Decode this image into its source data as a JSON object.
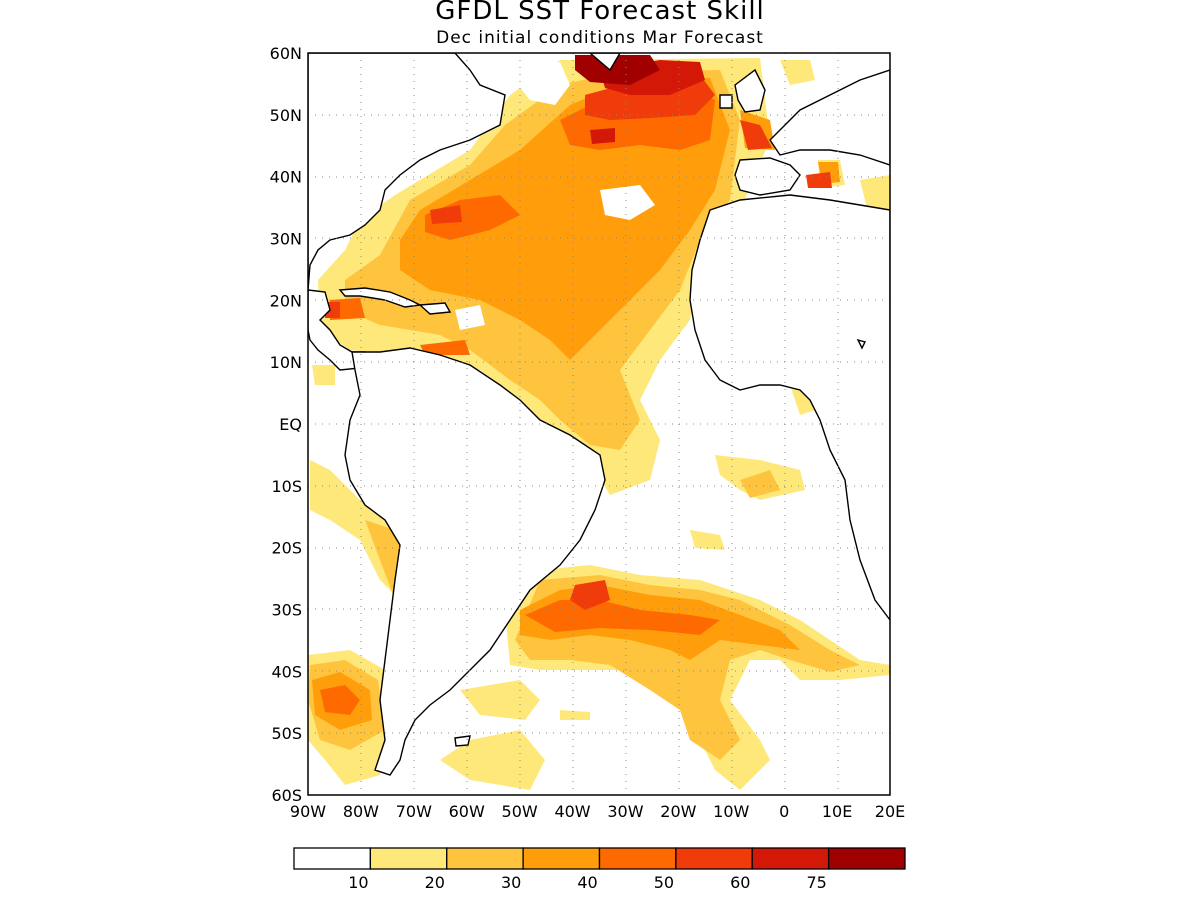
{
  "header": {
    "title": "GFDL SST Forecast Skill",
    "subtitle": "Dec initial conditions  Mar Forecast"
  },
  "map": {
    "lat_labels": [
      "60N",
      "50N",
      "40N",
      "30N",
      "20N",
      "10N",
      "EQ",
      "10S",
      "20S",
      "30S",
      "40S",
      "50S",
      "60S"
    ],
    "lon_labels": [
      "90W",
      "80W",
      "70W",
      "60W",
      "50W",
      "40W",
      "30W",
      "20W",
      "10W",
      "0",
      "10E",
      "20E"
    ],
    "lat_range": [
      -60,
      60
    ],
    "lon_range": [
      -90,
      20
    ],
    "grid": "dotted"
  },
  "colorbar": {
    "levels": [
      "10",
      "20",
      "30",
      "40",
      "50",
      "60",
      "75"
    ],
    "colors": [
      "#ffffff",
      "#ffe87a",
      "#ffc43e",
      "#ff9e0a",
      "#ff6a00",
      "#f03c0a",
      "#d41808",
      "#a00000"
    ]
  }
}
